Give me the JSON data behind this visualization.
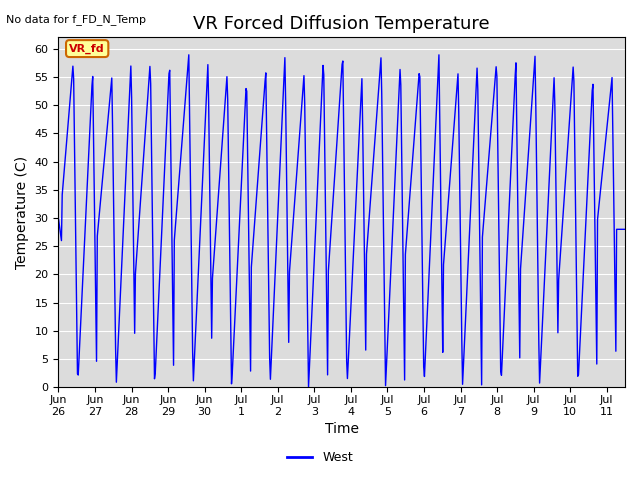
{
  "title": "VR Forced Diffusion Temperature",
  "ylabel": "Temperature (C)",
  "xlabel": "Time",
  "no_data_label": "No data for f_FD_N_Temp",
  "vr_fd_label": "VR_fd",
  "legend_label": "West",
  "ylim": [
    0,
    62
  ],
  "yticks": [
    0,
    5,
    10,
    15,
    20,
    25,
    30,
    35,
    40,
    45,
    50,
    55,
    60
  ],
  "bg_color": "#dcdcdc",
  "line_color": "#0000ff",
  "title_fontsize": 13,
  "axis_fontsize": 10,
  "tick_fontsize": 8,
  "xtick_labels": [
    "Jun 26",
    "Jun 27",
    "Jun 28",
    "Jun 29",
    "Jun 30",
    "Jul 1",
    "Jul 2",
    "Jul 3",
    "Jul 4",
    "Jul 5",
    "Jul 6",
    "Jul 7",
    "Jul 8",
    "Jul 9",
    "Jul 10",
    "Jul 11"
  ],
  "start_day": 0,
  "end_day": 15.5
}
